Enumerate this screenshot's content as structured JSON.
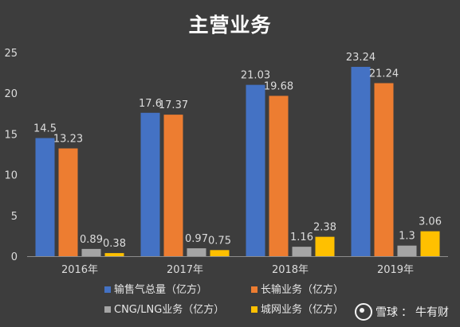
{
  "chart_data": {
    "type": "bar",
    "title": "主营业务",
    "categories": [
      "2016年",
      "2017年",
      "2018年",
      "2019年"
    ],
    "ylim": [
      0,
      25
    ],
    "yticks": [
      0,
      5,
      10,
      15,
      20,
      25
    ],
    "series": [
      {
        "name": "输售气总量（亿方）",
        "color": "#4472c4",
        "values": [
          14.5,
          17.6,
          21.03,
          23.24
        ]
      },
      {
        "name": "长输业务（亿方）",
        "color": "#ed7d31",
        "values": [
          13.23,
          17.37,
          19.68,
          21.24
        ]
      },
      {
        "name": "CNG/LNG业务（亿方）",
        "color": "#a5a5a5",
        "values": [
          0.89,
          0.97,
          1.16,
          1.3
        ]
      },
      {
        "name": "城网业务（亿方）",
        "color": "#ffc000",
        "values": [
          0.38,
          0.75,
          2.38,
          3.06
        ]
      }
    ],
    "legend_position": "bottom",
    "grid": false
  },
  "watermark": {
    "brand": "雪球",
    "separator": "：",
    "author": "牛有财"
  }
}
